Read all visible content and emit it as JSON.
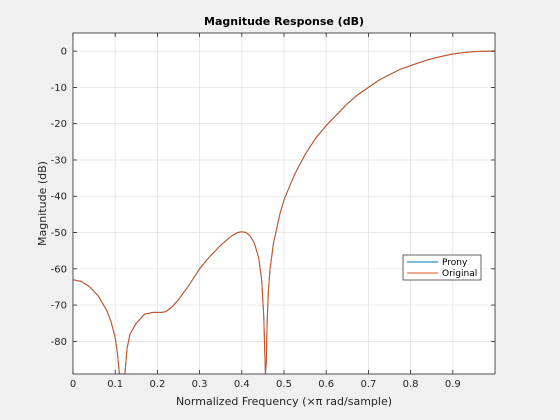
{
  "chart_data": {
    "type": "line",
    "title": "Magnitude Response (dB)",
    "xlabel": "Normalized Frequency (×π rad/sample)",
    "ylabel": "Magnitude (dB)",
    "xlim": [
      0,
      1
    ],
    "ylim": [
      -89,
      5
    ],
    "grid": true,
    "legend_position": "right",
    "x_ticks": [
      0,
      0.1,
      0.2,
      0.3,
      0.4,
      0.5,
      0.6,
      0.7,
      0.8,
      0.9
    ],
    "x_tick_labels": [
      "0",
      "0.1",
      "0.2",
      "0.3",
      "0.4",
      "0.5",
      "0.6",
      "0.7",
      "0.8",
      "0.9"
    ],
    "y_ticks": [
      0,
      -10,
      -20,
      -30,
      -40,
      -50,
      -60,
      -70,
      -80
    ],
    "y_tick_labels": [
      "0",
      "-10",
      "-20",
      "-30",
      "-40",
      "-50",
      "-60",
      "-70",
      "-80"
    ],
    "series": [
      {
        "name": "Prony",
        "color": "#0072bd",
        "points": [
          [
            0,
            -63
          ],
          [
            0.02,
            -63.5
          ],
          [
            0.04,
            -65
          ],
          [
            0.06,
            -67.5
          ],
          [
            0.08,
            -71.5
          ],
          [
            0.09,
            -74.5
          ],
          [
            0.1,
            -79
          ],
          [
            0.105,
            -83
          ],
          [
            0.11,
            -89
          ],
          [
            0.123,
            -89
          ],
          [
            0.128,
            -82
          ],
          [
            0.135,
            -78
          ],
          [
            0.15,
            -75
          ],
          [
            0.17,
            -72.5
          ],
          [
            0.19,
            -72
          ],
          [
            0.21,
            -72
          ],
          [
            0.22,
            -71.8
          ],
          [
            0.235,
            -70.5
          ],
          [
            0.25,
            -68.5
          ],
          [
            0.275,
            -64.5
          ],
          [
            0.3,
            -60
          ],
          [
            0.325,
            -56.5
          ],
          [
            0.35,
            -53.5
          ],
          [
            0.375,
            -51
          ],
          [
            0.39,
            -50
          ],
          [
            0.4,
            -49.8
          ],
          [
            0.41,
            -50
          ],
          [
            0.42,
            -51
          ],
          [
            0.43,
            -53
          ],
          [
            0.44,
            -57
          ],
          [
            0.447,
            -63
          ],
          [
            0.452,
            -73
          ],
          [
            0.456,
            -89
          ],
          [
            0.458,
            -86
          ],
          [
            0.46,
            -75
          ],
          [
            0.463,
            -66
          ],
          [
            0.467,
            -60
          ],
          [
            0.475,
            -53
          ],
          [
            0.49,
            -45
          ],
          [
            0.5,
            -41
          ],
          [
            0.525,
            -34
          ],
          [
            0.55,
            -28.5
          ],
          [
            0.575,
            -24
          ],
          [
            0.6,
            -20.5
          ],
          [
            0.625,
            -17.5
          ],
          [
            0.65,
            -14.5
          ],
          [
            0.675,
            -12
          ],
          [
            0.7,
            -10
          ],
          [
            0.725,
            -8
          ],
          [
            0.75,
            -6.5
          ],
          [
            0.775,
            -5
          ],
          [
            0.8,
            -4
          ],
          [
            0.825,
            -3
          ],
          [
            0.85,
            -2.1
          ],
          [
            0.875,
            -1.4
          ],
          [
            0.9,
            -0.8
          ],
          [
            0.925,
            -0.4
          ],
          [
            0.95,
            -0.15
          ],
          [
            0.975,
            -0.03
          ],
          [
            1.0,
            0
          ]
        ]
      },
      {
        "name": "Original",
        "color": "#d95319",
        "points": [
          [
            0,
            -63
          ],
          [
            0.02,
            -63.5
          ],
          [
            0.04,
            -65
          ],
          [
            0.06,
            -67.5
          ],
          [
            0.08,
            -71.5
          ],
          [
            0.09,
            -74.5
          ],
          [
            0.1,
            -79
          ],
          [
            0.105,
            -83
          ],
          [
            0.11,
            -89
          ],
          [
            0.123,
            -89
          ],
          [
            0.128,
            -82
          ],
          [
            0.135,
            -78
          ],
          [
            0.15,
            -75
          ],
          [
            0.17,
            -72.5
          ],
          [
            0.19,
            -72
          ],
          [
            0.21,
            -72
          ],
          [
            0.22,
            -71.8
          ],
          [
            0.235,
            -70.5
          ],
          [
            0.25,
            -68.5
          ],
          [
            0.275,
            -64.5
          ],
          [
            0.3,
            -60
          ],
          [
            0.325,
            -56.5
          ],
          [
            0.35,
            -53.5
          ],
          [
            0.375,
            -51
          ],
          [
            0.39,
            -50
          ],
          [
            0.4,
            -49.8
          ],
          [
            0.41,
            -50
          ],
          [
            0.42,
            -51
          ],
          [
            0.43,
            -53
          ],
          [
            0.44,
            -57
          ],
          [
            0.447,
            -63
          ],
          [
            0.452,
            -73
          ],
          [
            0.456,
            -89
          ],
          [
            0.458,
            -86
          ],
          [
            0.46,
            -75
          ],
          [
            0.463,
            -66
          ],
          [
            0.467,
            -60
          ],
          [
            0.475,
            -53
          ],
          [
            0.49,
            -45
          ],
          [
            0.5,
            -41
          ],
          [
            0.525,
            -34
          ],
          [
            0.55,
            -28.5
          ],
          [
            0.575,
            -24
          ],
          [
            0.6,
            -20.5
          ],
          [
            0.625,
            -17.5
          ],
          [
            0.65,
            -14.5
          ],
          [
            0.675,
            -12
          ],
          [
            0.7,
            -10
          ],
          [
            0.725,
            -8
          ],
          [
            0.75,
            -6.5
          ],
          [
            0.775,
            -5
          ],
          [
            0.8,
            -4
          ],
          [
            0.825,
            -3
          ],
          [
            0.85,
            -2.1
          ],
          [
            0.875,
            -1.4
          ],
          [
            0.9,
            -0.8
          ],
          [
            0.925,
            -0.4
          ],
          [
            0.95,
            -0.15
          ],
          [
            0.975,
            -0.03
          ],
          [
            1.0,
            0
          ]
        ]
      }
    ]
  }
}
